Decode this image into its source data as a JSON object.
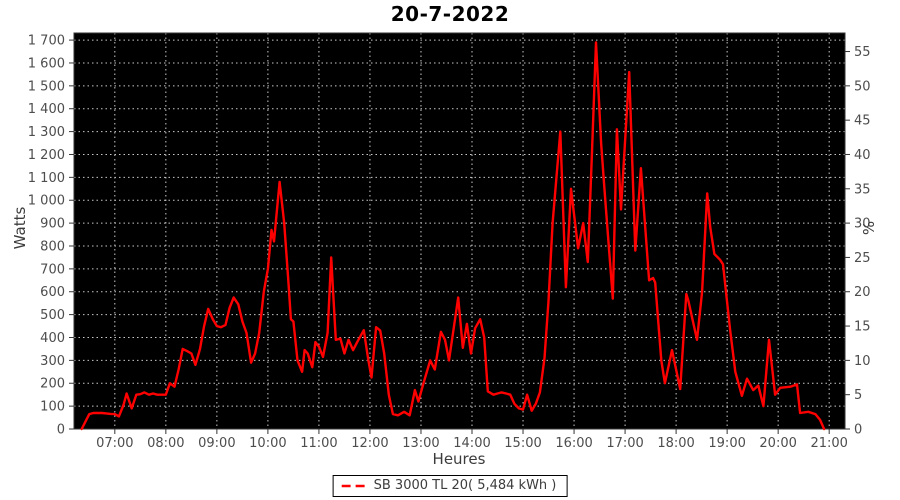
{
  "title": "20-7-2022",
  "legend": {
    "label": "SB 3000 TL 20( 5,484 kWh )"
  },
  "colors": {
    "line": "#ff0000",
    "plot_background": "#000000",
    "grid": "#c9c9c9",
    "axis": "#333333",
    "tick_text": "#4d4d4d",
    "title_text": "#000000"
  },
  "chart_data": {
    "type": "line",
    "title": "20-7-2022",
    "xlabel": "Heures",
    "ylabel_left": "Watts",
    "ylabel_right": "%",
    "grid": true,
    "plot_bg": "#000000",
    "legend_position": "bottom",
    "xlim": [
      6.2,
      21.31
    ],
    "ylim_left": [
      0,
      1731
    ],
    "ylim_right_percent_of_watts": 3000,
    "x_ticks": {
      "hours": [
        7,
        8,
        9,
        10,
        11,
        12,
        13,
        14,
        15,
        16,
        17,
        18,
        19,
        20,
        21
      ],
      "labels": [
        "07:00",
        "08:00",
        "09:00",
        "10:00",
        "11:00",
        "12:00",
        "13:00",
        "14:00",
        "15:00",
        "16:00",
        "17:00",
        "18:00",
        "19:00",
        "20:00",
        "21:00"
      ]
    },
    "y_ticks_left": {
      "values": [
        0,
        100,
        200,
        300,
        400,
        500,
        600,
        700,
        800,
        900,
        1000,
        1100,
        1200,
        1300,
        1400,
        1500,
        1600,
        1700
      ],
      "labels": [
        "0",
        "100",
        "200",
        "300",
        "400",
        "500",
        "600",
        "700",
        "800",
        "900",
        "1 000",
        "1 100",
        "1 200",
        "1 300",
        "1 400",
        "1 500",
        "1 600",
        "1 700"
      ]
    },
    "y_ticks_right": {
      "values": [
        0,
        5,
        10,
        15,
        20,
        25,
        30,
        35,
        40,
        45,
        50,
        55
      ],
      "labels": [
        "0",
        "5",
        "10",
        "15",
        "20",
        "25",
        "30",
        "35",
        "40",
        "45",
        "50",
        "55"
      ]
    },
    "series": [
      {
        "name": "SB 3000 TL 20( 5,484 kWh )",
        "color": "#ff0000",
        "x": [
          6.35,
          6.42,
          6.5,
          6.58,
          6.67,
          6.75,
          6.83,
          6.92,
          7.0,
          7.08,
          7.17,
          7.23,
          7.33,
          7.42,
          7.5,
          7.58,
          7.67,
          7.75,
          7.83,
          7.92,
          8.0,
          8.08,
          8.17,
          8.25,
          8.33,
          8.42,
          8.5,
          8.58,
          8.67,
          8.75,
          8.83,
          8.92,
          9.0,
          9.08,
          9.17,
          9.25,
          9.33,
          9.42,
          9.5,
          9.58,
          9.67,
          9.75,
          9.83,
          9.92,
          10.0,
          10.07,
          10.12,
          10.23,
          10.32,
          10.4,
          10.45,
          10.5,
          10.58,
          10.67,
          10.72,
          10.78,
          10.87,
          10.93,
          11.0,
          11.08,
          11.17,
          11.24,
          11.33,
          11.42,
          11.5,
          11.58,
          11.67,
          11.75,
          11.88,
          11.97,
          12.03,
          12.12,
          12.2,
          12.28,
          12.37,
          12.45,
          12.55,
          12.67,
          12.78,
          12.88,
          12.95,
          13.05,
          13.18,
          13.27,
          13.39,
          13.47,
          13.55,
          13.73,
          13.82,
          13.9,
          13.98,
          14.06,
          14.16,
          14.24,
          14.31,
          14.42,
          14.5,
          14.58,
          14.67,
          14.75,
          14.83,
          14.92,
          15.0,
          15.08,
          15.17,
          15.25,
          15.33,
          15.42,
          15.5,
          15.58,
          15.73,
          15.84,
          15.94,
          16.08,
          16.18,
          16.27,
          16.35,
          16.43,
          16.53,
          16.61,
          16.76,
          16.84,
          16.92,
          17.08,
          17.2,
          17.31,
          17.47,
          17.55,
          17.59,
          17.71,
          17.78,
          17.92,
          18.08,
          18.2,
          18.24,
          18.41,
          18.51,
          18.61,
          18.67,
          18.75,
          18.86,
          18.92,
          19.06,
          19.16,
          19.29,
          19.39,
          19.51,
          19.61,
          19.71,
          19.82,
          19.94,
          20.04,
          20.24,
          20.37,
          20.43,
          20.59,
          20.73,
          20.82,
          20.9
        ],
        "y": [
          0,
          30,
          65,
          70,
          70,
          70,
          68,
          66,
          65,
          55,
          105,
          155,
          90,
          150,
          152,
          160,
          150,
          155,
          150,
          150,
          150,
          200,
          185,
          260,
          350,
          340,
          330,
          280,
          350,
          450,
          525,
          480,
          450,
          445,
          455,
          530,
          575,
          545,
          470,
          420,
          290,
          330,
          420,
          600,
          700,
          870,
          820,
          1080,
          900,
          650,
          480,
          470,
          300,
          250,
          345,
          330,
          270,
          380,
          360,
          315,
          420,
          750,
          390,
          395,
          330,
          390,
          345,
          380,
          432,
          300,
          225,
          445,
          430,
          330,
          150,
          65,
          60,
          75,
          60,
          170,
          120,
          200,
          300,
          260,
          425,
          390,
          300,
          575,
          355,
          460,
          330,
          440,
          480,
          400,
          165,
          150,
          155,
          160,
          155,
          150,
          110,
          90,
          85,
          150,
          80,
          110,
          160,
          310,
          560,
          900,
          1300,
          620,
          1050,
          790,
          900,
          730,
          1200,
          1690,
          1250,
          1005,
          570,
          1310,
          960,
          1560,
          780,
          1140,
          650,
          660,
          640,
          300,
          200,
          345,
          175,
          590,
          560,
          390,
          600,
          1030,
          880,
          765,
          740,
          720,
          430,
          250,
          145,
          220,
          170,
          190,
          100,
          390,
          150,
          180,
          185,
          195,
          70,
          75,
          65,
          40,
          0
        ]
      }
    ]
  }
}
